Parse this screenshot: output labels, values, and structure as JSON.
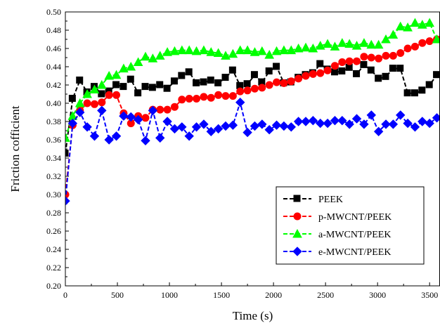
{
  "chart_data": {
    "type": "line",
    "xlabel": "Time (s)",
    "ylabel": "Friction cofficient",
    "xlim": [
      0,
      3600
    ],
    "ylim": [
      0.2,
      0.5
    ],
    "xticks": [
      "0",
      "500",
      "1000",
      "1500",
      "2000",
      "2500",
      "3000",
      "3500"
    ],
    "yticks": [
      "0.20",
      "0.22",
      "0.24",
      "0.26",
      "0.28",
      "0.30",
      "0.32",
      "0.34",
      "0.36",
      "0.38",
      "0.40",
      "0.42",
      "0.44",
      "0.46",
      "0.48",
      "0.50"
    ],
    "grid": false,
    "legend": "bottom-right",
    "series": [
      {
        "name": "PEEK",
        "color": "#000000",
        "marker": "square",
        "x": [
          0,
          70,
          140,
          210,
          280,
          350,
          420,
          490,
          560,
          630,
          700,
          770,
          840,
          910,
          980,
          1050,
          1120,
          1190,
          1260,
          1330,
          1400,
          1470,
          1540,
          1610,
          1680,
          1750,
          1820,
          1890,
          1960,
          2030,
          2100,
          2170,
          2240,
          2310,
          2380,
          2450,
          2520,
          2590,
          2660,
          2730,
          2800,
          2870,
          2940,
          3010,
          3080,
          3150,
          3220,
          3290,
          3360,
          3430,
          3500,
          3570
        ],
        "y": [
          0.345,
          0.405,
          0.425,
          0.412,
          0.418,
          0.41,
          0.413,
          0.42,
          0.418,
          0.426,
          0.411,
          0.418,
          0.417,
          0.42,
          0.416,
          0.424,
          0.43,
          0.434,
          0.422,
          0.423,
          0.425,
          0.422,
          0.428,
          0.436,
          0.419,
          0.421,
          0.431,
          0.423,
          0.435,
          0.44,
          0.422,
          0.423,
          0.428,
          0.431,
          0.433,
          0.443,
          0.437,
          0.434,
          0.435,
          0.439,
          0.432,
          0.442,
          0.436,
          0.427,
          0.429,
          0.438,
          0.438,
          0.411,
          0.411,
          0.414,
          0.42,
          0.431
        ]
      },
      {
        "name": "p-MWCNT/PEEK",
        "color": "#ff0000",
        "marker": "circle",
        "x": [
          0,
          70,
          140,
          210,
          280,
          350,
          420,
          490,
          560,
          630,
          700,
          770,
          840,
          910,
          980,
          1050,
          1120,
          1190,
          1260,
          1330,
          1400,
          1470,
          1540,
          1610,
          1680,
          1750,
          1820,
          1890,
          1960,
          2030,
          2100,
          2170,
          2240,
          2310,
          2380,
          2450,
          2520,
          2590,
          2660,
          2730,
          2800,
          2870,
          2940,
          3010,
          3080,
          3150,
          3220,
          3290,
          3360,
          3430,
          3500,
          3570
        ],
        "y": [
          0.3,
          0.376,
          0.392,
          0.4,
          0.399,
          0.401,
          0.409,
          0.409,
          0.389,
          0.378,
          0.386,
          0.384,
          0.393,
          0.393,
          0.393,
          0.396,
          0.404,
          0.405,
          0.405,
          0.407,
          0.406,
          0.409,
          0.408,
          0.408,
          0.413,
          0.414,
          0.416,
          0.417,
          0.42,
          0.423,
          0.422,
          0.424,
          0.427,
          0.43,
          0.432,
          0.433,
          0.436,
          0.441,
          0.445,
          0.446,
          0.446,
          0.451,
          0.45,
          0.449,
          0.452,
          0.452,
          0.455,
          0.46,
          0.462,
          0.466,
          0.468,
          0.47
        ]
      },
      {
        "name": "a-MWCNT/PEEK",
        "color": "#00ff00",
        "marker": "triangle",
        "x": [
          0,
          70,
          140,
          210,
          280,
          350,
          420,
          490,
          560,
          630,
          700,
          770,
          840,
          910,
          980,
          1050,
          1120,
          1190,
          1260,
          1330,
          1400,
          1470,
          1540,
          1610,
          1680,
          1750,
          1820,
          1890,
          1960,
          2030,
          2100,
          2170,
          2240,
          2310,
          2380,
          2450,
          2520,
          2590,
          2660,
          2730,
          2800,
          2870,
          2940,
          3010,
          3080,
          3150,
          3220,
          3290,
          3360,
          3430,
          3500,
          3570
        ],
        "y": [
          0.362,
          0.386,
          0.4,
          0.41,
          0.415,
          0.42,
          0.43,
          0.431,
          0.438,
          0.44,
          0.445,
          0.451,
          0.449,
          0.452,
          0.456,
          0.457,
          0.458,
          0.458,
          0.457,
          0.458,
          0.456,
          0.455,
          0.452,
          0.454,
          0.458,
          0.458,
          0.456,
          0.457,
          0.453,
          0.457,
          0.458,
          0.458,
          0.46,
          0.461,
          0.46,
          0.463,
          0.465,
          0.462,
          0.466,
          0.465,
          0.463,
          0.466,
          0.464,
          0.464,
          0.47,
          0.475,
          0.484,
          0.483,
          0.488,
          0.486,
          0.488,
          0.47
        ]
      },
      {
        "name": "e-MWCNT/PEEK",
        "color": "#0000ff",
        "marker": "diamond",
        "x": [
          0,
          70,
          140,
          210,
          280,
          350,
          420,
          490,
          560,
          630,
          700,
          770,
          840,
          910,
          980,
          1050,
          1120,
          1190,
          1260,
          1330,
          1400,
          1470,
          1540,
          1610,
          1680,
          1750,
          1820,
          1890,
          1960,
          2030,
          2100,
          2170,
          2240,
          2310,
          2380,
          2450,
          2520,
          2590,
          2660,
          2730,
          2800,
          2870,
          2940,
          3010,
          3080,
          3150,
          3220,
          3290,
          3360,
          3430,
          3500,
          3570
        ],
        "y": [
          0.293,
          0.378,
          0.39,
          0.374,
          0.364,
          0.392,
          0.36,
          0.364,
          0.386,
          0.385,
          0.382,
          0.359,
          0.392,
          0.362,
          0.38,
          0.372,
          0.374,
          0.364,
          0.374,
          0.377,
          0.369,
          0.372,
          0.375,
          0.376,
          0.401,
          0.368,
          0.375,
          0.377,
          0.371,
          0.376,
          0.375,
          0.374,
          0.38,
          0.38,
          0.381,
          0.378,
          0.378,
          0.381,
          0.381,
          0.377,
          0.383,
          0.377,
          0.387,
          0.369,
          0.377,
          0.377,
          0.387,
          0.378,
          0.374,
          0.38,
          0.378,
          0.384
        ]
      }
    ]
  }
}
